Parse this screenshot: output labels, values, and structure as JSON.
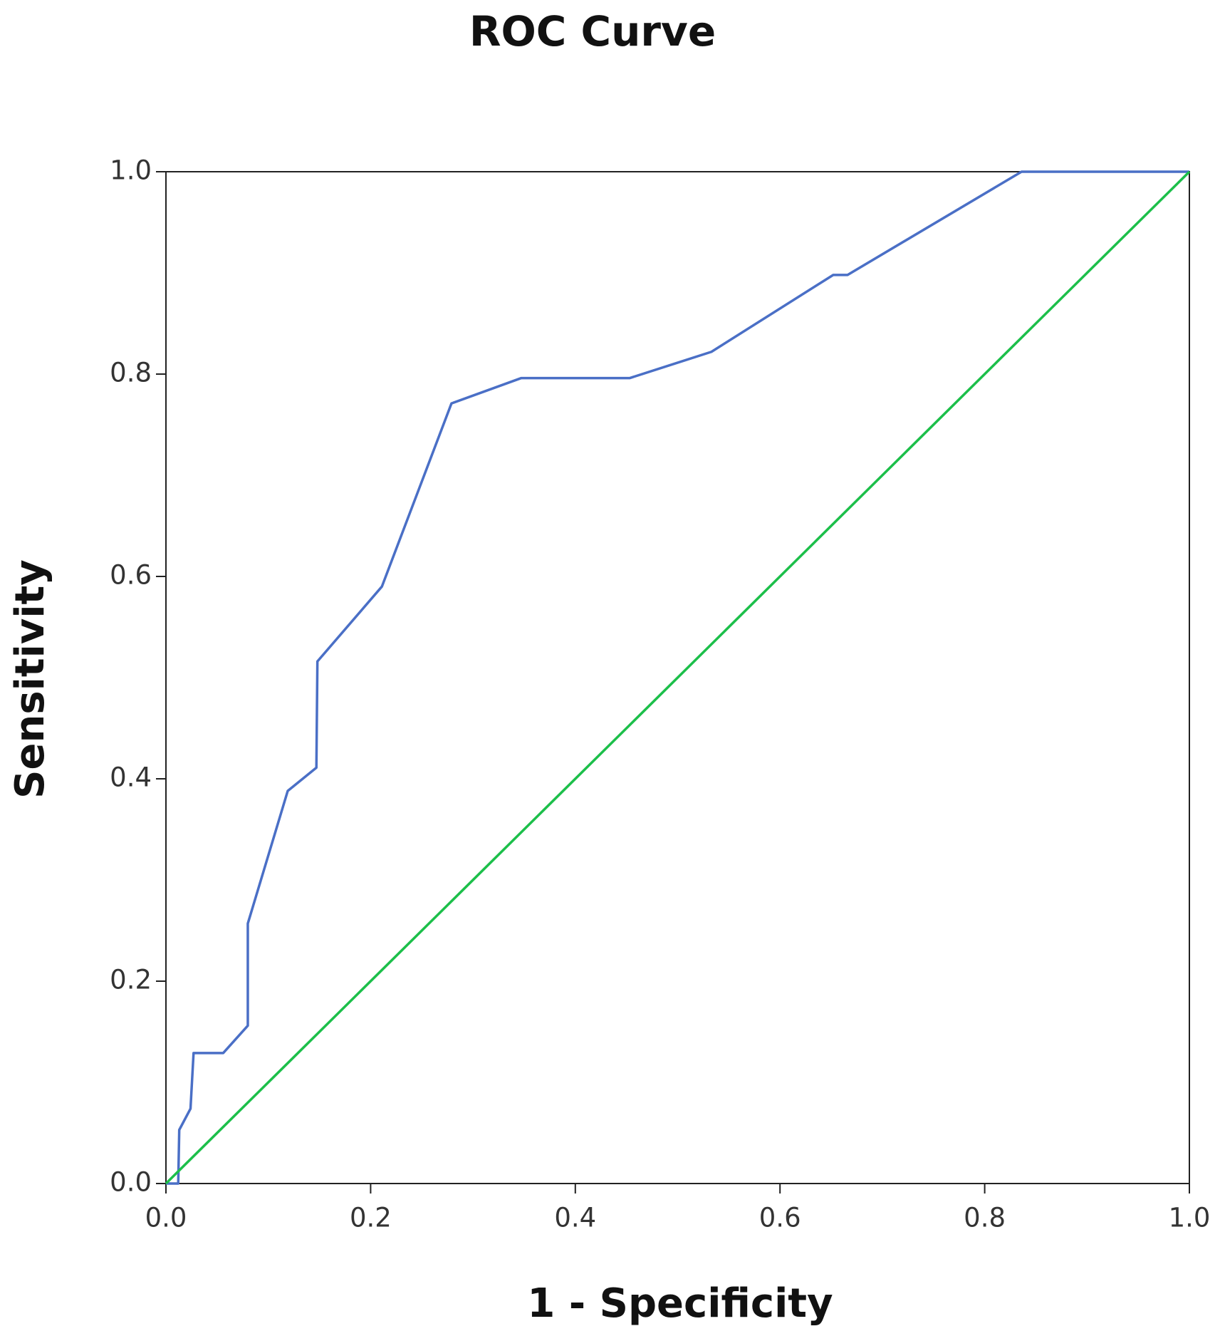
{
  "chart_data": {
    "type": "line",
    "title": "ROC Curve",
    "x_label": "1 - Specificity",
    "y_label": "Sensitivity",
    "xlim": [
      0,
      1
    ],
    "ylim": [
      0,
      1
    ],
    "xticks": [
      {
        "value": 0,
        "label": "0.0"
      },
      {
        "value": 0.2,
        "label": "0.2"
      },
      {
        "value": 0.4,
        "label": "0.4"
      },
      {
        "value": 0.6,
        "label": "0.6"
      },
      {
        "value": 0.8,
        "label": "0.8"
      },
      {
        "value": 1,
        "label": "1.0"
      }
    ],
    "yticks": [
      {
        "value": 0,
        "label": "0.0"
      },
      {
        "value": 0.2,
        "label": "0.2"
      },
      {
        "value": 0.4,
        "label": "0.4"
      },
      {
        "value": 0.6,
        "label": "0.6"
      },
      {
        "value": 0.8,
        "label": "0.8"
      },
      {
        "value": 1,
        "label": "1.0"
      }
    ],
    "grid": false,
    "series": [
      {
        "color": "#4a6fc6",
        "x": [
          0,
          0.012,
          0.013,
          0.024,
          0.027,
          0.056,
          0.08,
          0.08,
          0.119,
          0.147,
          0.148,
          0.211,
          0.279,
          0.347,
          0.453,
          0.533,
          0.652,
          0.666,
          0.836,
          1
        ],
        "values": [
          0,
          0,
          0.053,
          0.074,
          0.129,
          0.129,
          0.156,
          0.257,
          0.388,
          0.411,
          0.516,
          0.59,
          0.771,
          0.796,
          0.796,
          0.822,
          0.898,
          0.898,
          1,
          1
        ]
      },
      {
        "color": "#1cbf4a",
        "x": [
          0,
          1
        ],
        "values": [
          0,
          1
        ]
      }
    ]
  }
}
